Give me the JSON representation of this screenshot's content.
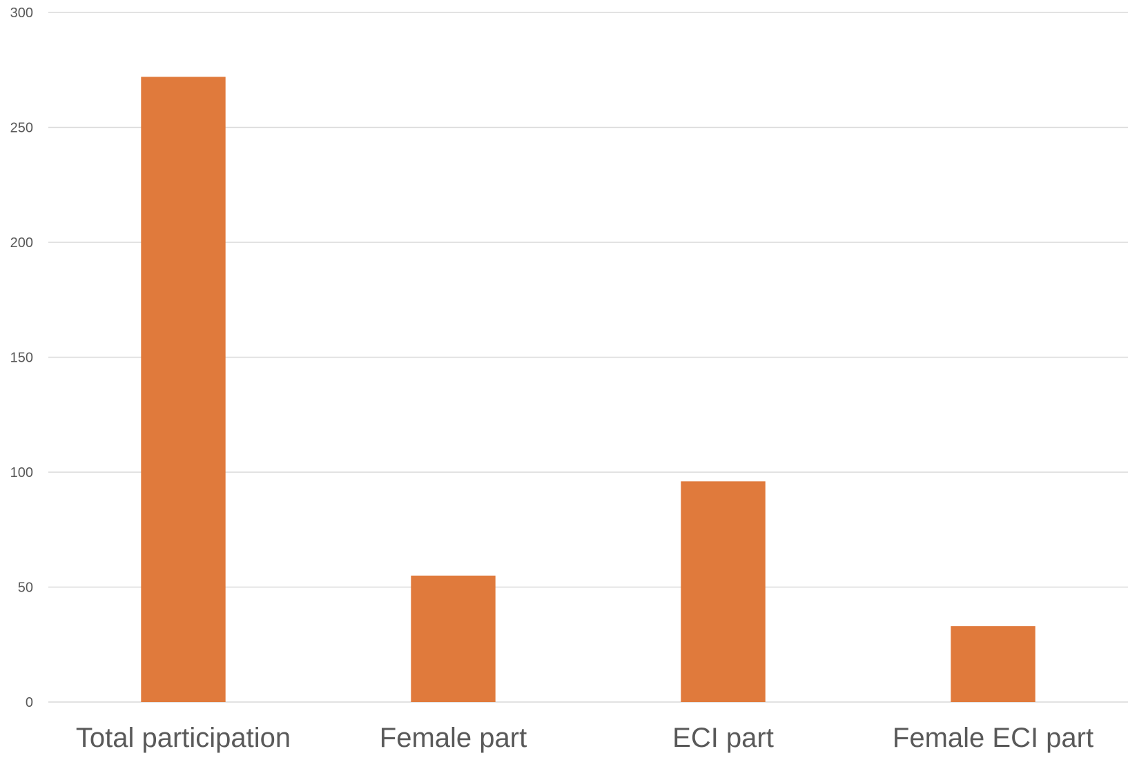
{
  "chart_data": {
    "type": "bar",
    "categories": [
      "Total participation",
      "Female part",
      "ECI part",
      "Female ECI part"
    ],
    "values": [
      272,
      55,
      96,
      33
    ],
    "title": "",
    "xlabel": "",
    "ylabel": "",
    "ylim": [
      0,
      300
    ],
    "yticks": [
      0,
      50,
      100,
      150,
      200,
      250,
      300
    ],
    "grid": true,
    "legend": "none",
    "bar_color": "#E07A3C",
    "grid_color": "#D9D9D9",
    "label_color": "#595959"
  }
}
